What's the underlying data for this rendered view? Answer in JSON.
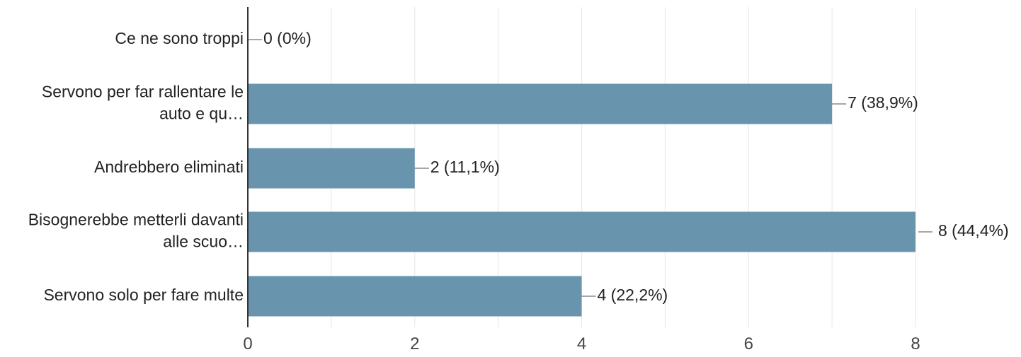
{
  "chart_data": {
    "type": "bar",
    "orientation": "horizontal",
    "categories": [
      [
        "Ce ne sono troppi"
      ],
      [
        "Servono per far rallentare le",
        "auto e qu…"
      ],
      [
        "Andrebbero eliminati"
      ],
      [
        "Bisognerebbe metterli davanti",
        "alle scuo…"
      ],
      [
        "Servono solo per fare multe"
      ]
    ],
    "values": [
      0,
      7,
      2,
      8,
      4
    ],
    "data_labels": [
      "0 (0%)",
      "7 (38,9%)",
      "2 (11,1%)",
      "8 (44,4%)",
      "4 (22,2%)"
    ],
    "xlim": [
      0,
      8
    ],
    "x_ticks": [
      0,
      2,
      4,
      6,
      8
    ],
    "title": "",
    "xlabel": "",
    "ylabel": "",
    "grid": true,
    "bar_color": "#6894ae"
  }
}
